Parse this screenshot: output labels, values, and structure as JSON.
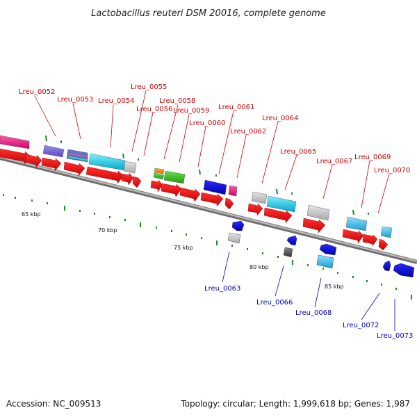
{
  "title": "Lactobacillus reuteri DSM 20016, complete genome",
  "footer": {
    "accession": "Accession: NC_009513",
    "summary": "Topology: circular; Length: 1,999,618 bp; Genes: 1,987"
  },
  "colors": {
    "forward_cds": "#ff0000",
    "reverse_cds": "#0000ee",
    "backbone": "#999999",
    "top_label": "#cc0000",
    "bottom_label": "#0000bb"
  },
  "scale_labels": [
    "65 kbp",
    "70 kbp",
    "75 kbp",
    "80 kbp",
    "85 kbp"
  ],
  "top_labels": [
    "Lreu_0052",
    "Lreu_0053",
    "Lreu_0054",
    "Lreu_0055",
    "Lreu_0056",
    "Lreu_0058",
    "Lreu_0059",
    "Lreu_0060",
    "Lreu_0061",
    "Lreu_0062",
    "Lreu_0064",
    "Lreu_0065",
    "Lreu_0067",
    "Lreu_0069",
    "Lreu_0070"
  ],
  "bottom_labels": [
    "Lreu_0063",
    "Lreu_0066",
    "Lreu_0068",
    "Lreu_0072",
    "Lreu_0073"
  ]
}
